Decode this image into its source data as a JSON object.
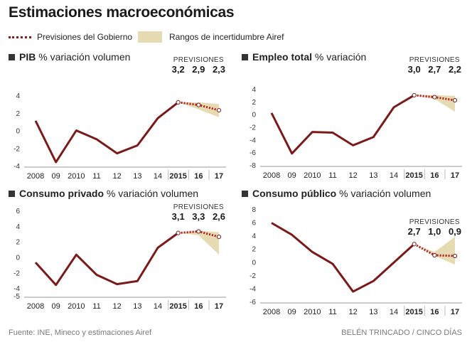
{
  "title": "Estimaciones macroeconómicas",
  "legend": {
    "government": "Previsiones del Gobierno",
    "airef": "Rangos de incertidumbre Airef"
  },
  "source": "Fuente: INE, Mineco y estimaciones Airef",
  "credit": "BELÉN TRINCADO / CINCO DÍAS",
  "colors": {
    "line": "#7b1a1a",
    "band": "#e6dbb3",
    "forecast_dots": "#b01e1e"
  },
  "chart_data": [
    {
      "type": "line",
      "panel": "pib",
      "title_bold": "PIB",
      "title_rest": "% variación volumen",
      "forecast_label": "PREVISIONES",
      "categories": [
        "2008",
        "09",
        "2010",
        "11",
        "12",
        "13",
        "14",
        "2015",
        "16",
        "17"
      ],
      "values": [
        1.1,
        -3.6,
        0.0,
        -1.0,
        -2.6,
        -1.7,
        1.4,
        3.2,
        2.9,
        2.3
      ],
      "forecast_labels": [
        "3,2",
        "2,9",
        "2,3"
      ],
      "band_upper": [
        3.2,
        3.2,
        3.0
      ],
      "band_lower": [
        3.2,
        2.4,
        1.5
      ],
      "yticks": [
        "4",
        "2",
        "0",
        "-2",
        "-4"
      ],
      "ylim": [
        -4,
        4
      ]
    },
    {
      "type": "line",
      "panel": "empleo",
      "title_bold": "Empleo total",
      "title_rest": "% variación",
      "forecast_label": "PREVISIONES",
      "categories": [
        "2008",
        "09",
        "2010",
        "11",
        "12",
        "13",
        "14",
        "2015",
        "16",
        "17"
      ],
      "values": [
        0.2,
        -6.2,
        -2.8,
        -2.9,
        -4.9,
        -3.6,
        1.1,
        3.0,
        2.7,
        2.2
      ],
      "forecast_labels": [
        "3,0",
        "2,7",
        "2,2"
      ],
      "band_upper": [
        3.0,
        3.0,
        2.9
      ],
      "band_lower": [
        3.0,
        2.4,
        0.4
      ],
      "yticks": [
        "4",
        "2",
        "0",
        "-2",
        "-4",
        "-6",
        "-8"
      ],
      "ylim": [
        -8,
        4
      ]
    },
    {
      "type": "line",
      "panel": "consumo_privado",
      "title_bold": "Consumo privado",
      "title_rest": "% variación volumen",
      "forecast_label": "PREVISIONES",
      "categories": [
        "2008",
        "09",
        "2010",
        "11",
        "12",
        "13",
        "14",
        "2015",
        "16",
        "17"
      ],
      "values": [
        -0.7,
        -3.6,
        0.3,
        -2.3,
        -3.5,
        -3.1,
        1.2,
        3.1,
        3.3,
        2.6
      ],
      "forecast_labels": [
        "3,1",
        "3,3",
        "2,6"
      ],
      "band_upper": [
        3.1,
        3.4,
        3.2
      ],
      "band_lower": [
        3.1,
        2.8,
        0.3
      ],
      "yticks": [
        "6",
        "4",
        "2",
        "0",
        "-2",
        "-4",
        "-5"
      ],
      "ylim": [
        -5,
        6
      ]
    },
    {
      "type": "line",
      "panel": "consumo_publico",
      "title_bold": "Consumo público",
      "title_rest": "% variación volumen",
      "forecast_label": "PREVISIONES",
      "categories": [
        "2008",
        "09",
        "2010",
        "11",
        "12",
        "13",
        "14",
        "2015",
        "16",
        "17"
      ],
      "values": [
        5.9,
        4.1,
        1.5,
        -0.3,
        -4.5,
        -2.9,
        -0.1,
        2.7,
        1.0,
        0.9
      ],
      "forecast_labels": [
        "2,7",
        "1,0",
        "0,9"
      ],
      "band_upper": [
        2.7,
        1.5,
        3.8
      ],
      "band_lower": [
        2.7,
        0.9,
        -0.4
      ],
      "yticks": [
        "8",
        "6",
        "4",
        "2",
        "0",
        "-2",
        "-4",
        "-6"
      ],
      "ylim": [
        -6,
        8
      ]
    }
  ]
}
